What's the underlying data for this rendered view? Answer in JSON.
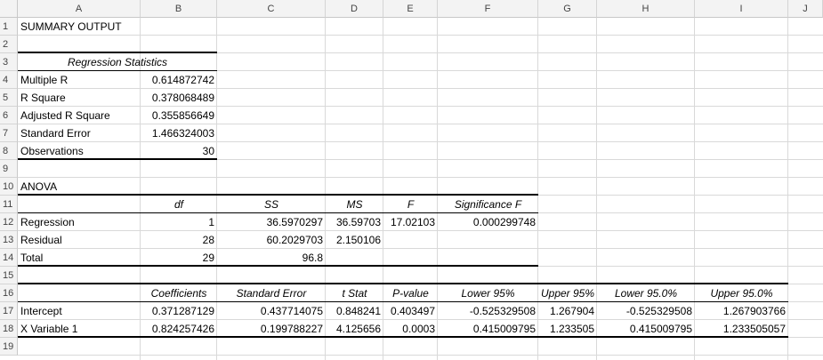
{
  "columns": [
    "A",
    "B",
    "C",
    "D",
    "E",
    "F",
    "G",
    "H",
    "I",
    "J"
  ],
  "rows": [
    "1",
    "2",
    "3",
    "4",
    "5",
    "6",
    "7",
    "8",
    "9",
    "10",
    "11",
    "12",
    "13",
    "14",
    "15",
    "16",
    "17",
    "18",
    "19"
  ],
  "summary": {
    "title": "SUMMARY OUTPUT"
  },
  "regression_stats": {
    "heading": "Regression Statistics",
    "items": [
      {
        "label": "Multiple R",
        "value": "0.614872742"
      },
      {
        "label": "R Square",
        "value": "0.378068489"
      },
      {
        "label": "Adjusted R Square",
        "value": "0.355856649"
      },
      {
        "label": "Standard Error",
        "value": "1.466324003"
      },
      {
        "label": "Observations",
        "value": "30"
      }
    ]
  },
  "anova": {
    "title": "ANOVA",
    "headers": [
      "df",
      "SS",
      "MS",
      "F",
      "Significance F"
    ],
    "rows": [
      {
        "label": "Regression",
        "df": "1",
        "ss": "36.5970297",
        "ms": "36.59703",
        "f": "17.02103",
        "sig": "0.000299748"
      },
      {
        "label": "Residual",
        "df": "28",
        "ss": "60.2029703",
        "ms": "2.150106",
        "f": "",
        "sig": ""
      },
      {
        "label": "Total",
        "df": "29",
        "ss": "96.8",
        "ms": "",
        "f": "",
        "sig": ""
      }
    ]
  },
  "coefficients": {
    "headers": [
      "Coefficients",
      "Standard Error",
      "t Stat",
      "P-value",
      "Lower 95%",
      "Upper 95%",
      "Lower 95.0%",
      "Upper 95.0%"
    ],
    "rows": [
      {
        "label": "Intercept",
        "values": [
          "0.371287129",
          "0.437714075",
          "0.848241",
          "0.403497",
          "-0.525329508",
          "1.267904",
          "-0.525329508",
          "1.267903766"
        ]
      },
      {
        "label": "X Variable 1",
        "values": [
          "0.824257426",
          "0.199788227",
          "4.125656",
          "0.0003",
          "0.415009795",
          "1.233505",
          "0.415009795",
          "1.233505057"
        ]
      }
    ]
  },
  "colors": {
    "grid": "#d9d9d9",
    "header_bg": "#f3f3f3",
    "rule": "#000000"
  }
}
